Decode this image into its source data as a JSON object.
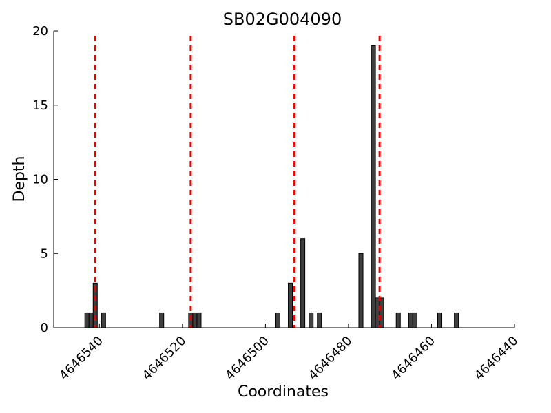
{
  "chart_data": {
    "type": "bar",
    "title": "SB02G004090",
    "xlabel": "Coordinates",
    "ylabel": "Depth",
    "x_inverted": true,
    "xlim": [
      4646551,
      4646440
    ],
    "ylim": [
      0,
      20
    ],
    "xticks": [
      4646540,
      4646520,
      4646500,
      4646480,
      4646460,
      4646440
    ],
    "yticks": [
      0,
      5,
      10,
      15,
      20
    ],
    "bar_width": 1,
    "bars": [
      {
        "x": 4646543,
        "value": 1
      },
      {
        "x": 4646542,
        "value": 1
      },
      {
        "x": 4646541,
        "value": 3
      },
      {
        "x": 4646539,
        "value": 1
      },
      {
        "x": 4646525,
        "value": 1
      },
      {
        "x": 4646518,
        "value": 1
      },
      {
        "x": 4646517,
        "value": 1
      },
      {
        "x": 4646516,
        "value": 1
      },
      {
        "x": 4646497,
        "value": 1
      },
      {
        "x": 4646494,
        "value": 3
      },
      {
        "x": 4646491,
        "value": 6
      },
      {
        "x": 4646489,
        "value": 1
      },
      {
        "x": 4646487,
        "value": 1
      },
      {
        "x": 4646477,
        "value": 5
      },
      {
        "x": 4646474,
        "value": 19
      },
      {
        "x": 4646473,
        "value": 2
      },
      {
        "x": 4646472,
        "value": 2
      },
      {
        "x": 4646468,
        "value": 1
      },
      {
        "x": 4646465,
        "value": 1
      },
      {
        "x": 4646464,
        "value": 1
      },
      {
        "x": 4646458,
        "value": 1
      },
      {
        "x": 4646454,
        "value": 1
      }
    ],
    "reference_lines": [
      4646541,
      4646518,
      4646493,
      4646472.5
    ],
    "reference_line_color": "#ee0000",
    "bar_color": "#404040",
    "grid": false
  }
}
